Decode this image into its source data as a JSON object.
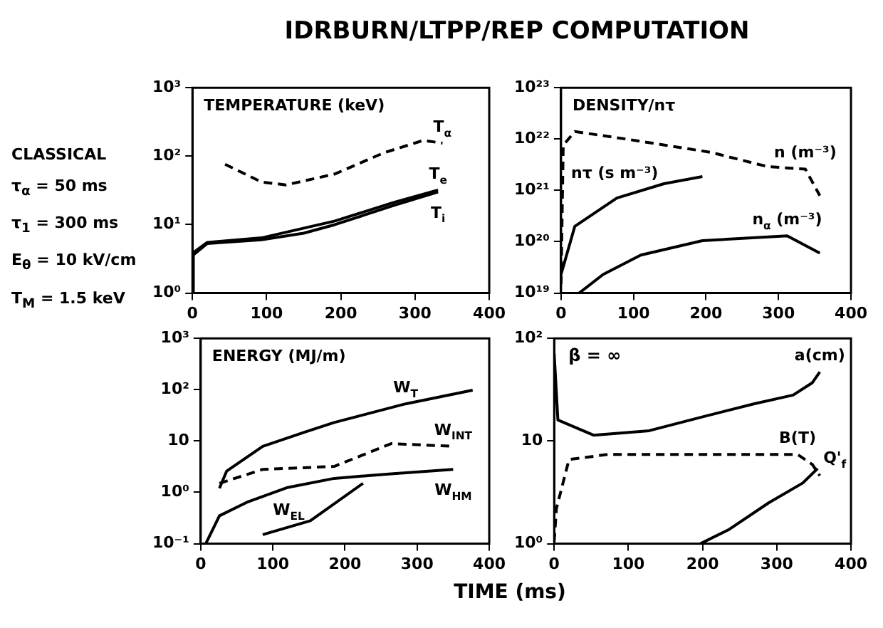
{
  "chart_data": [
    {
      "type": "line",
      "title": "TEMPERATURE (keV)",
      "annotations": [
        "IDRBURN/LTPP/REP COMPUTATION",
        "CLASSICAL",
        "τ$_{α}$ = 50 ms",
        "τ$_{1}$ = 300 ms",
        "E$_{θ}$ = 10 kV/cm",
        "T$_{M}$ = 1.5 keV"
      ],
      "log": "y",
      "grid": false,
      "legend": false,
      "marker": "none",
      "xlim": [
        0,
        400
      ],
      "xticks": [
        0,
        100,
        200,
        300,
        400
      ],
      "ylim": [
        1,
        1000
      ],
      "yticks": [
        {
          "value": 1000,
          "label": "10³"
        },
        {
          "value": 100,
          "label": "10²"
        },
        {
          "value": 10,
          "label": "10¹"
        },
        {
          "value": 1,
          "label": "10⁰"
        }
      ],
      "series": [
        {
          "name": "T$_{α}$",
          "color": "#000000",
          "line_style": "dashed",
          "x": [
            44,
            93,
            126,
            192,
            258,
            311,
            337
          ],
          "values": [
            76,
            42,
            38,
            55,
            112,
            170,
            155
          ]
        },
        {
          "name": "T$_{e}$",
          "color": "#000000",
          "line_style": "solid",
          "x": [
            0,
            1,
            20,
            93,
            192,
            271,
            331
          ],
          "values": [
            1,
            3.9,
            5.5,
            6.4,
            11.3,
            21,
            32
          ]
        },
        {
          "name": "T$_{i}$",
          "color": "#000000",
          "line_style": "solid",
          "x": [
            0,
            1,
            20,
            93,
            150,
            192,
            271,
            331
          ],
          "values": [
            1,
            3.6,
            5.3,
            6,
            7.5,
            10,
            19,
            30
          ]
        }
      ]
    },
    {
      "type": "line",
      "title": "DENSITY/nτ",
      "log": "y",
      "grid": false,
      "legend": false,
      "marker": "none",
      "xlim": [
        0,
        400
      ],
      "xticks": [
        0,
        100,
        200,
        300,
        400
      ],
      "ylim": [
        1e+19,
        1e+23
      ],
      "yticks": [
        {
          "value": 1e+23,
          "label": "10²³"
        },
        {
          "value": 1e+22,
          "label": "10²²"
        },
        {
          "value": 1e+21,
          "label": "10²¹"
        },
        {
          "value": 1e+20,
          "label": "10²⁰"
        },
        {
          "value": 1e+19,
          "label": "10¹⁹"
        }
      ],
      "series": [
        {
          "name": "n (m⁻³)",
          "color": "#000000",
          "line_style": "dashed",
          "x": [
            0,
            3,
            19,
            90,
            207,
            285,
            337,
            357
          ],
          "values": [
            1.5e+19,
            7.6e+21,
            1.4e+22,
            1e+22,
            5.5e+21,
            2.9e+21,
            2.6e+21,
            7.9e+20
          ]
        },
        {
          "name": "nτ (s m⁻³)",
          "color": "#000000",
          "line_style": "solid",
          "x": [
            0,
            19,
            77,
            142,
            195
          ],
          "values": [
            2.3e+19,
            2e+20,
            7.1e+20,
            1.35e+21,
            1.86e+21
          ]
        },
        {
          "name": "n$_{α}$ (m⁻³)",
          "color": "#000000",
          "line_style": "solid",
          "x": [
            25,
            58,
            110,
            195,
            312,
            357
          ],
          "values": [
            1e+19,
            2.3e+19,
            5.5e+19,
            1.05e+20,
            1.3e+20,
            6e+19
          ]
        }
      ]
    },
    {
      "type": "line",
      "title": "ENERGY (MJ/m)",
      "xlabel": "TIME (ms)",
      "log": "y",
      "grid": false,
      "legend": false,
      "marker": "none",
      "xlim": [
        0,
        400
      ],
      "xticks": [
        0,
        100,
        200,
        300,
        400
      ],
      "ylim": [
        0.1,
        1000
      ],
      "yticks": [
        {
          "value": 1000,
          "label": "10³"
        },
        {
          "value": 100,
          "label": "10²"
        },
        {
          "value": 10,
          "label": "10"
        },
        {
          "value": 1,
          "label": "10⁰"
        },
        {
          "value": 0.1,
          "label": "10⁻¹"
        }
      ],
      "series": [
        {
          "name": "W$_{T}$",
          "color": "#000000",
          "line_style": "solid",
          "x": [
            26,
            36,
            86,
            145,
            185,
            284,
            377
          ],
          "values": [
            1.2,
            2.6,
            7.9,
            15,
            23,
            53,
            98
          ]
        },
        {
          "name": "W$_{INT}$",
          "color": "#000000",
          "line_style": "dashed",
          "x": [
            26,
            86,
            185,
            264,
            350
          ],
          "values": [
            1.5,
            2.8,
            3.2,
            8.9,
            7.9
          ]
        },
        {
          "name": "W$_{HM}$",
          "color": "#000000",
          "line_style": "solid",
          "x": [
            7,
            26,
            66,
            119,
            185,
            264,
            350
          ],
          "values": [
            0.1,
            0.35,
            0.66,
            1.23,
            1.87,
            2.3,
            2.8
          ]
        },
        {
          "name": "W$_{EL}$",
          "color": "#000000",
          "line_style": "solid",
          "x": [
            86,
            152,
            225
          ],
          "values": [
            0.15,
            0.28,
            1.5
          ]
        }
      ]
    },
    {
      "type": "line",
      "annotations": [
        "β = ∞"
      ],
      "log": "y",
      "grid": false,
      "legend": false,
      "marker": "none",
      "xlim": [
        0,
        400
      ],
      "xticks": [
        0,
        100,
        200,
        300,
        400
      ],
      "ylim": [
        1,
        100
      ],
      "yticks": [
        {
          "value": 100,
          "label": "10²"
        },
        {
          "value": 10,
          "label": "10"
        },
        {
          "value": 1,
          "label": "10⁰"
        }
      ],
      "series": [
        {
          "name": "a(cm)",
          "color": "#000000",
          "line_style": "solid",
          "x": [
            0,
            5,
            53,
            128,
            204,
            269,
            322,
            348,
            358
          ],
          "values": [
            71,
            16,
            11.4,
            12.6,
            17.5,
            23,
            28,
            37,
            47
          ]
        },
        {
          "name": "B(T)",
          "color": "#000000",
          "line_style": "dashed",
          "x": [
            0,
            3,
            20,
            72,
            328,
            348,
            358
          ],
          "values": [
            1.05,
            2.2,
            6.6,
            7.4,
            7.4,
            5.9,
            4.6
          ]
        },
        {
          "name": "Q'$_{f}$",
          "color": "#000000",
          "line_style": "solid",
          "x": [
            197,
            236,
            289,
            335,
            355
          ],
          "values": [
            1.0,
            1.38,
            2.5,
            3.9,
            5.4
          ]
        }
      ]
    }
  ]
}
